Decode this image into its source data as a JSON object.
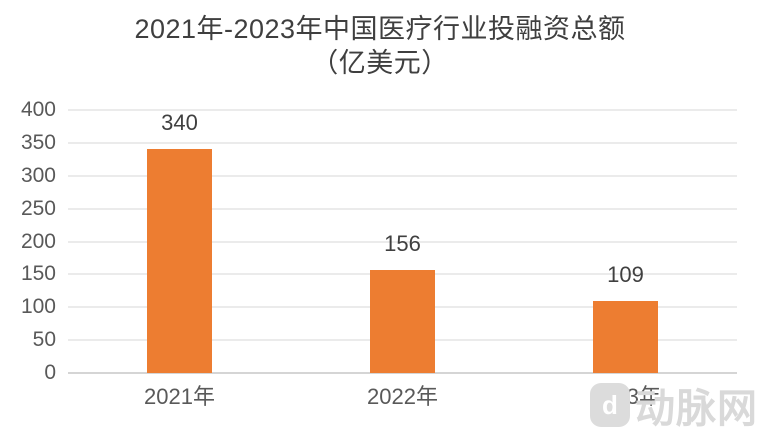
{
  "title": {
    "line1": "2021年-2023年中国医疗行业投融资总额",
    "line2": "（亿美元）"
  },
  "chart_data": {
    "type": "bar",
    "title": "2021年-2023年中国医疗行业投融资总额（亿美元）",
    "categories": [
      "2021年",
      "2022年",
      "2023年"
    ],
    "values": [
      340,
      156,
      109
    ],
    "data_labels": [
      "340",
      "156",
      "109"
    ],
    "xlabel": "",
    "ylabel": "",
    "ylim": [
      0,
      400
    ],
    "yticks": [
      0,
      50,
      100,
      150,
      200,
      250,
      300,
      350,
      400
    ],
    "grid": true,
    "legend_position": "none",
    "bar_color": "#ED7D31"
  },
  "colors": {
    "bar": "#ED7D31",
    "gridline": "#EBEBEB",
    "axis_line": "#D5D5D5",
    "title_text": "#3F3F3F",
    "axis_text": "#595959",
    "value_text": "#404040",
    "watermark": "#D9D9D9"
  },
  "watermark": {
    "logo_glyph": "d",
    "text": "动脉网"
  }
}
